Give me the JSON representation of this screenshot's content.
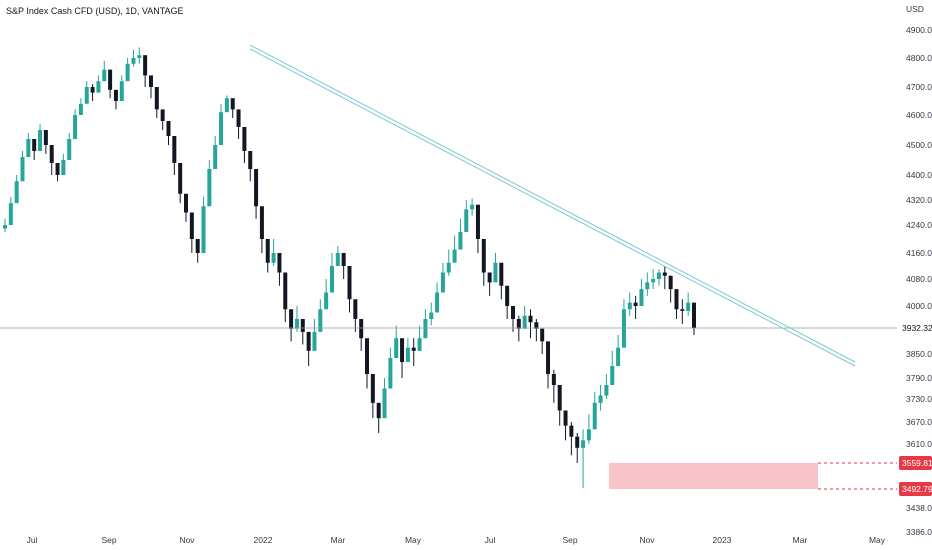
{
  "header": {
    "title": "S&P Index Cash CFD (USD), 1D, VANTAGE",
    "currency": "USD"
  },
  "chart_data": {
    "type": "candlestick",
    "y_axis_ticks": [
      "4900.00",
      "4800.00",
      "4700.00",
      "4600.00",
      "4500.00",
      "4400.00",
      "4320.00",
      "4240.00",
      "4160.00",
      "4080.00",
      "4000.00",
      "3850.00",
      "3790.00",
      "3730.00",
      "3670.00",
      "3610.00",
      "3438.00",
      "3386.00"
    ],
    "x_axis_ticks": [
      "Jul",
      "Sep",
      "Nov",
      "2022",
      "Mar",
      "May",
      "Jul",
      "Sep",
      "Nov",
      "2023",
      "Mar",
      "May"
    ],
    "last_price": {
      "label": "3932.32",
      "value": 3932.32
    },
    "support_zone": {
      "top_label": "3559.81",
      "top": 3559.81,
      "bottom_label": "3492.79",
      "bottom": 3492.79
    },
    "trendline": {
      "start_value": 4845,
      "end_value": 3835,
      "color": "#7fc9d4"
    },
    "colors": {
      "up": "#26a69a",
      "down": "#131722",
      "zone_fill": "#f7c5c9",
      "zone_line": "#e53945",
      "last_line": "#9598a1"
    },
    "closes": [
      4240,
      4310,
      4380,
      4460,
      4520,
      4480,
      4550,
      4500,
      4440,
      4400,
      4450,
      4520,
      4600,
      4640,
      4700,
      4680,
      4720,
      4760,
      4690,
      4650,
      4720,
      4780,
      4800,
      4810,
      4740,
      4700,
      4620,
      4580,
      4530,
      4440,
      4340,
      4280,
      4200,
      4160,
      4300,
      4420,
      4500,
      4610,
      4660,
      4620,
      4560,
      4480,
      4420,
      4300,
      4200,
      4130,
      4160,
      4100,
      3990,
      3930,
      3960,
      3920,
      3860,
      3920,
      3990,
      4040,
      4120,
      4160,
      4120,
      4020,
      3960,
      3900,
      3800,
      3720,
      3680,
      3760,
      3840,
      3900,
      3830,
      3870,
      3860,
      3900,
      3960,
      3980,
      4040,
      4100,
      4130,
      4170,
      4220,
      4290,
      4305,
      4200,
      4100,
      4070,
      4130,
      4060,
      4000,
      3960,
      3930,
      3970,
      3950,
      3930,
      3890,
      3800,
      3770,
      3700,
      3660,
      3630,
      3600,
      3620,
      3650,
      3720,
      3740,
      3770,
      3820,
      3870,
      3990,
      4010,
      4000,
      4050,
      4070,
      4080,
      4100,
      4090,
      4050,
      3990,
      3985,
      4010,
      3932
    ],
    "highs": [
      4260,
      4330,
      4400,
      4480,
      4540,
      4510,
      4570,
      4530,
      4470,
      4430,
      4470,
      4540,
      4620,
      4660,
      4720,
      4710,
      4740,
      4790,
      4720,
      4680,
      4740,
      4800,
      4830,
      4838,
      4780,
      4730,
      4660,
      4610,
      4560,
      4470,
      4370,
      4310,
      4230,
      4200,
      4330,
      4450,
      4530,
      4640,
      4670,
      4650,
      4590,
      4510,
      4450,
      4330,
      4230,
      4170,
      4200,
      4140,
      4040,
      3970,
      4000,
      3960,
      3900,
      3960,
      4020,
      4080,
      4160,
      4180,
      4150,
      4060,
      4000,
      3950,
      3850,
      3760,
      3720,
      3790,
      3870,
      3940,
      3870,
      3900,
      3900,
      3940,
      3990,
      4010,
      4070,
      4130,
      4170,
      4210,
      4260,
      4320,
      4325,
      4230,
      4140,
      4100,
      4160,
      4100,
      4040,
      4000,
      3970,
      4000,
      3990,
      3960,
      3930,
      3840,
      3810,
      3740,
      3700,
      3670,
      3640,
      3650,
      3690,
      3750,
      3770,
      3800,
      3860,
      3910,
      4020,
      4040,
      4030,
      4080,
      4100,
      4110,
      4110,
      4120,
      4090,
      4030,
      4020,
      4040,
      3950
    ],
    "lows": [
      4220,
      4280,
      4350,
      4430,
      4490,
      4450,
      4520,
      4470,
      4400,
      4380,
      4420,
      4490,
      4570,
      4610,
      4670,
      4650,
      4690,
      4730,
      4660,
      4620,
      4690,
      4750,
      4770,
      4780,
      4700,
      4660,
      4590,
      4550,
      4500,
      4400,
      4310,
      4250,
      4160,
      4130,
      4270,
      4380,
      4470,
      4580,
      4620,
      4590,
      4520,
      4440,
      4380,
      4260,
      4160,
      4100,
      4120,
      4060,
      3950,
      3890,
      3920,
      3880,
      3820,
      3880,
      3950,
      4000,
      4080,
      4120,
      4080,
      3980,
      3920,
      3860,
      3760,
      3680,
      3640,
      3720,
      3800,
      3850,
      3790,
      3830,
      3820,
      3860,
      3920,
      3940,
      4000,
      4060,
      4090,
      4130,
      4180,
      4250,
      4270,
      4160,
      4060,
      4030,
      4090,
      4020,
      3960,
      3920,
      3890,
      3930,
      3900,
      3890,
      3850,
      3760,
      3720,
      3660,
      3620,
      3580,
      3560,
      3495,
      3610,
      3680,
      3700,
      3730,
      3780,
      3830,
      3950,
      3970,
      3960,
      4010,
      4030,
      4050,
      4060,
      4050,
      4010,
      3960,
      3945,
      3970,
      3910
    ]
  }
}
